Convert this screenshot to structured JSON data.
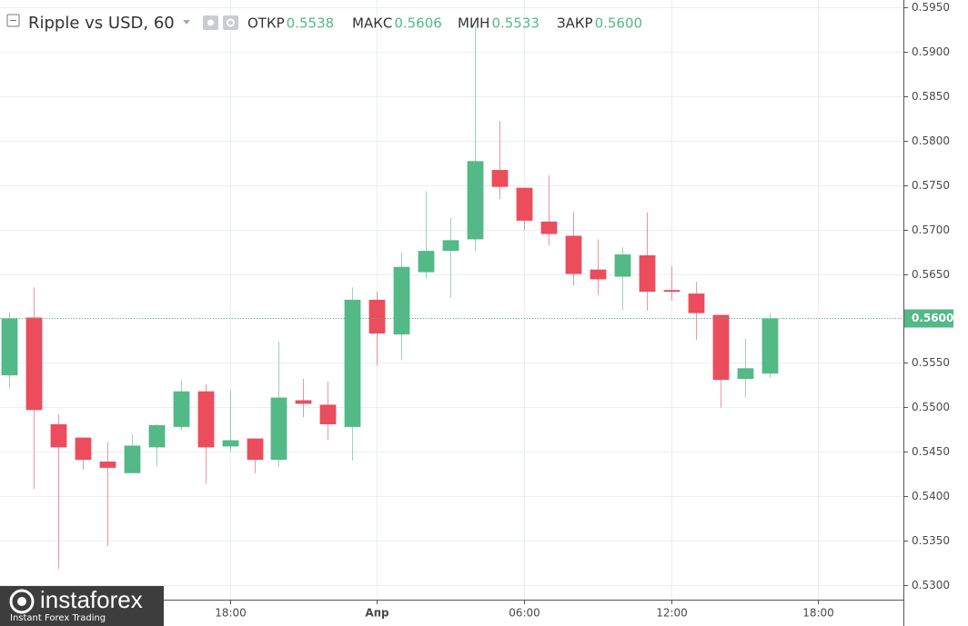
{
  "chart_data": {
    "type": "candlestick",
    "title": "Ripple vs USD, 60",
    "ohlc_header": [
      {
        "label": "ОТКР",
        "value": {
          "value": 0.5538,
          "label": "0.5538"
        }
      },
      {
        "label": "МАКС",
        "value": {
          "value": 0.5606,
          "label": "0.5606"
        }
      },
      {
        "label": "МИН",
        "value": {
          "value": 0.5533,
          "label": "0.5533"
        }
      },
      {
        "label": "ЗАКР",
        "value": {
          "value": 0.56,
          "label": "0.5600"
        }
      }
    ],
    "up_color": "#53b987",
    "down_color": "#eb4d5c",
    "open": [
      0.5536,
      0.5601,
      0.5481,
      0.5466,
      0.5439,
      0.5426,
      0.5455,
      0.5478,
      0.5518,
      0.5456,
      0.5465,
      0.5441,
      0.5508,
      0.5503,
      0.5478,
      0.5621,
      0.5582,
      0.5652,
      0.5676,
      0.5689,
      0.5767,
      0.5747,
      0.5709,
      0.5693,
      0.5655,
      0.5647,
      0.5671,
      0.5632,
      0.5628,
      0.5604,
      0.5532,
      0.5538
    ],
    "high": [
      0.5607,
      0.5635,
      0.5492,
      0.5466,
      0.5461,
      0.547,
      0.5481,
      0.5531,
      0.5526,
      0.5519,
      0.5465,
      0.5574,
      0.5532,
      0.5529,
      0.5635,
      0.563,
      0.5674,
      0.5743,
      0.5713,
      0.5928,
      0.5822,
      0.5747,
      0.5761,
      0.572,
      0.5689,
      0.568,
      0.5719,
      0.5659,
      0.5641,
      0.5604,
      0.5577,
      0.5606
    ],
    "low": [
      0.5521,
      0.5408,
      0.5318,
      0.543,
      0.5344,
      0.5426,
      0.5433,
      0.5474,
      0.5414,
      0.545,
      0.5426,
      0.5433,
      0.5489,
      0.5463,
      0.544,
      0.5547,
      0.5553,
      0.5645,
      0.5623,
      0.5676,
      0.5734,
      0.5699,
      0.5682,
      0.5637,
      0.5626,
      0.5609,
      0.5609,
      0.562,
      0.5576,
      0.55,
      0.5511,
      0.5533
    ],
    "close": [
      0.56,
      0.5497,
      0.5455,
      0.5441,
      0.5432,
      0.5457,
      0.548,
      0.5518,
      0.5455,
      0.5463,
      0.5441,
      0.5511,
      0.5504,
      0.5481,
      0.5621,
      0.5583,
      0.5658,
      0.5676,
      0.5688,
      0.5777,
      0.5748,
      0.571,
      0.5695,
      0.565,
      0.5644,
      0.5672,
      0.563,
      0.563,
      0.5606,
      0.5531,
      0.5544,
      0.56
    ],
    "xlim": [
      -0.37,
      36.47
    ],
    "xticks": [
      {
        "value": 9,
        "label": "18:00"
      },
      {
        "value": 15,
        "label": "Апр"
      },
      {
        "value": 21,
        "label": "06:00"
      },
      {
        "value": 27,
        "label": "12:00"
      },
      {
        "value": 33,
        "label": "18:00"
      }
    ],
    "ylim": [
      0.52837,
      0.59582
    ],
    "yticks": [
      {
        "value": 0.53,
        "label": "0.5300"
      },
      {
        "value": 0.535,
        "label": "0.5350"
      },
      {
        "value": 0.54,
        "label": "0.5400"
      },
      {
        "value": 0.545,
        "label": "0.5450"
      },
      {
        "value": 0.55,
        "label": "0.5500"
      },
      {
        "value": 0.555,
        "label": "0.5550"
      },
      {
        "value": 0.56,
        "label": "0.5600"
      },
      {
        "value": 0.565,
        "label": "0.5650"
      },
      {
        "value": 0.57,
        "label": "0.5700"
      },
      {
        "value": 0.575,
        "label": "0.5750"
      },
      {
        "value": 0.58,
        "label": "0.5800"
      },
      {
        "value": 0.585,
        "label": "0.5850"
      },
      {
        "value": 0.59,
        "label": "0.5900"
      },
      {
        "value": 0.595,
        "label": "0.5950"
      }
    ],
    "last_price": {
      "value": 0.56,
      "label": "0.5600"
    },
    "grid": true,
    "watermark": {
      "brand": "instaforex",
      "tagline": "Instant Forex Trading"
    }
  }
}
